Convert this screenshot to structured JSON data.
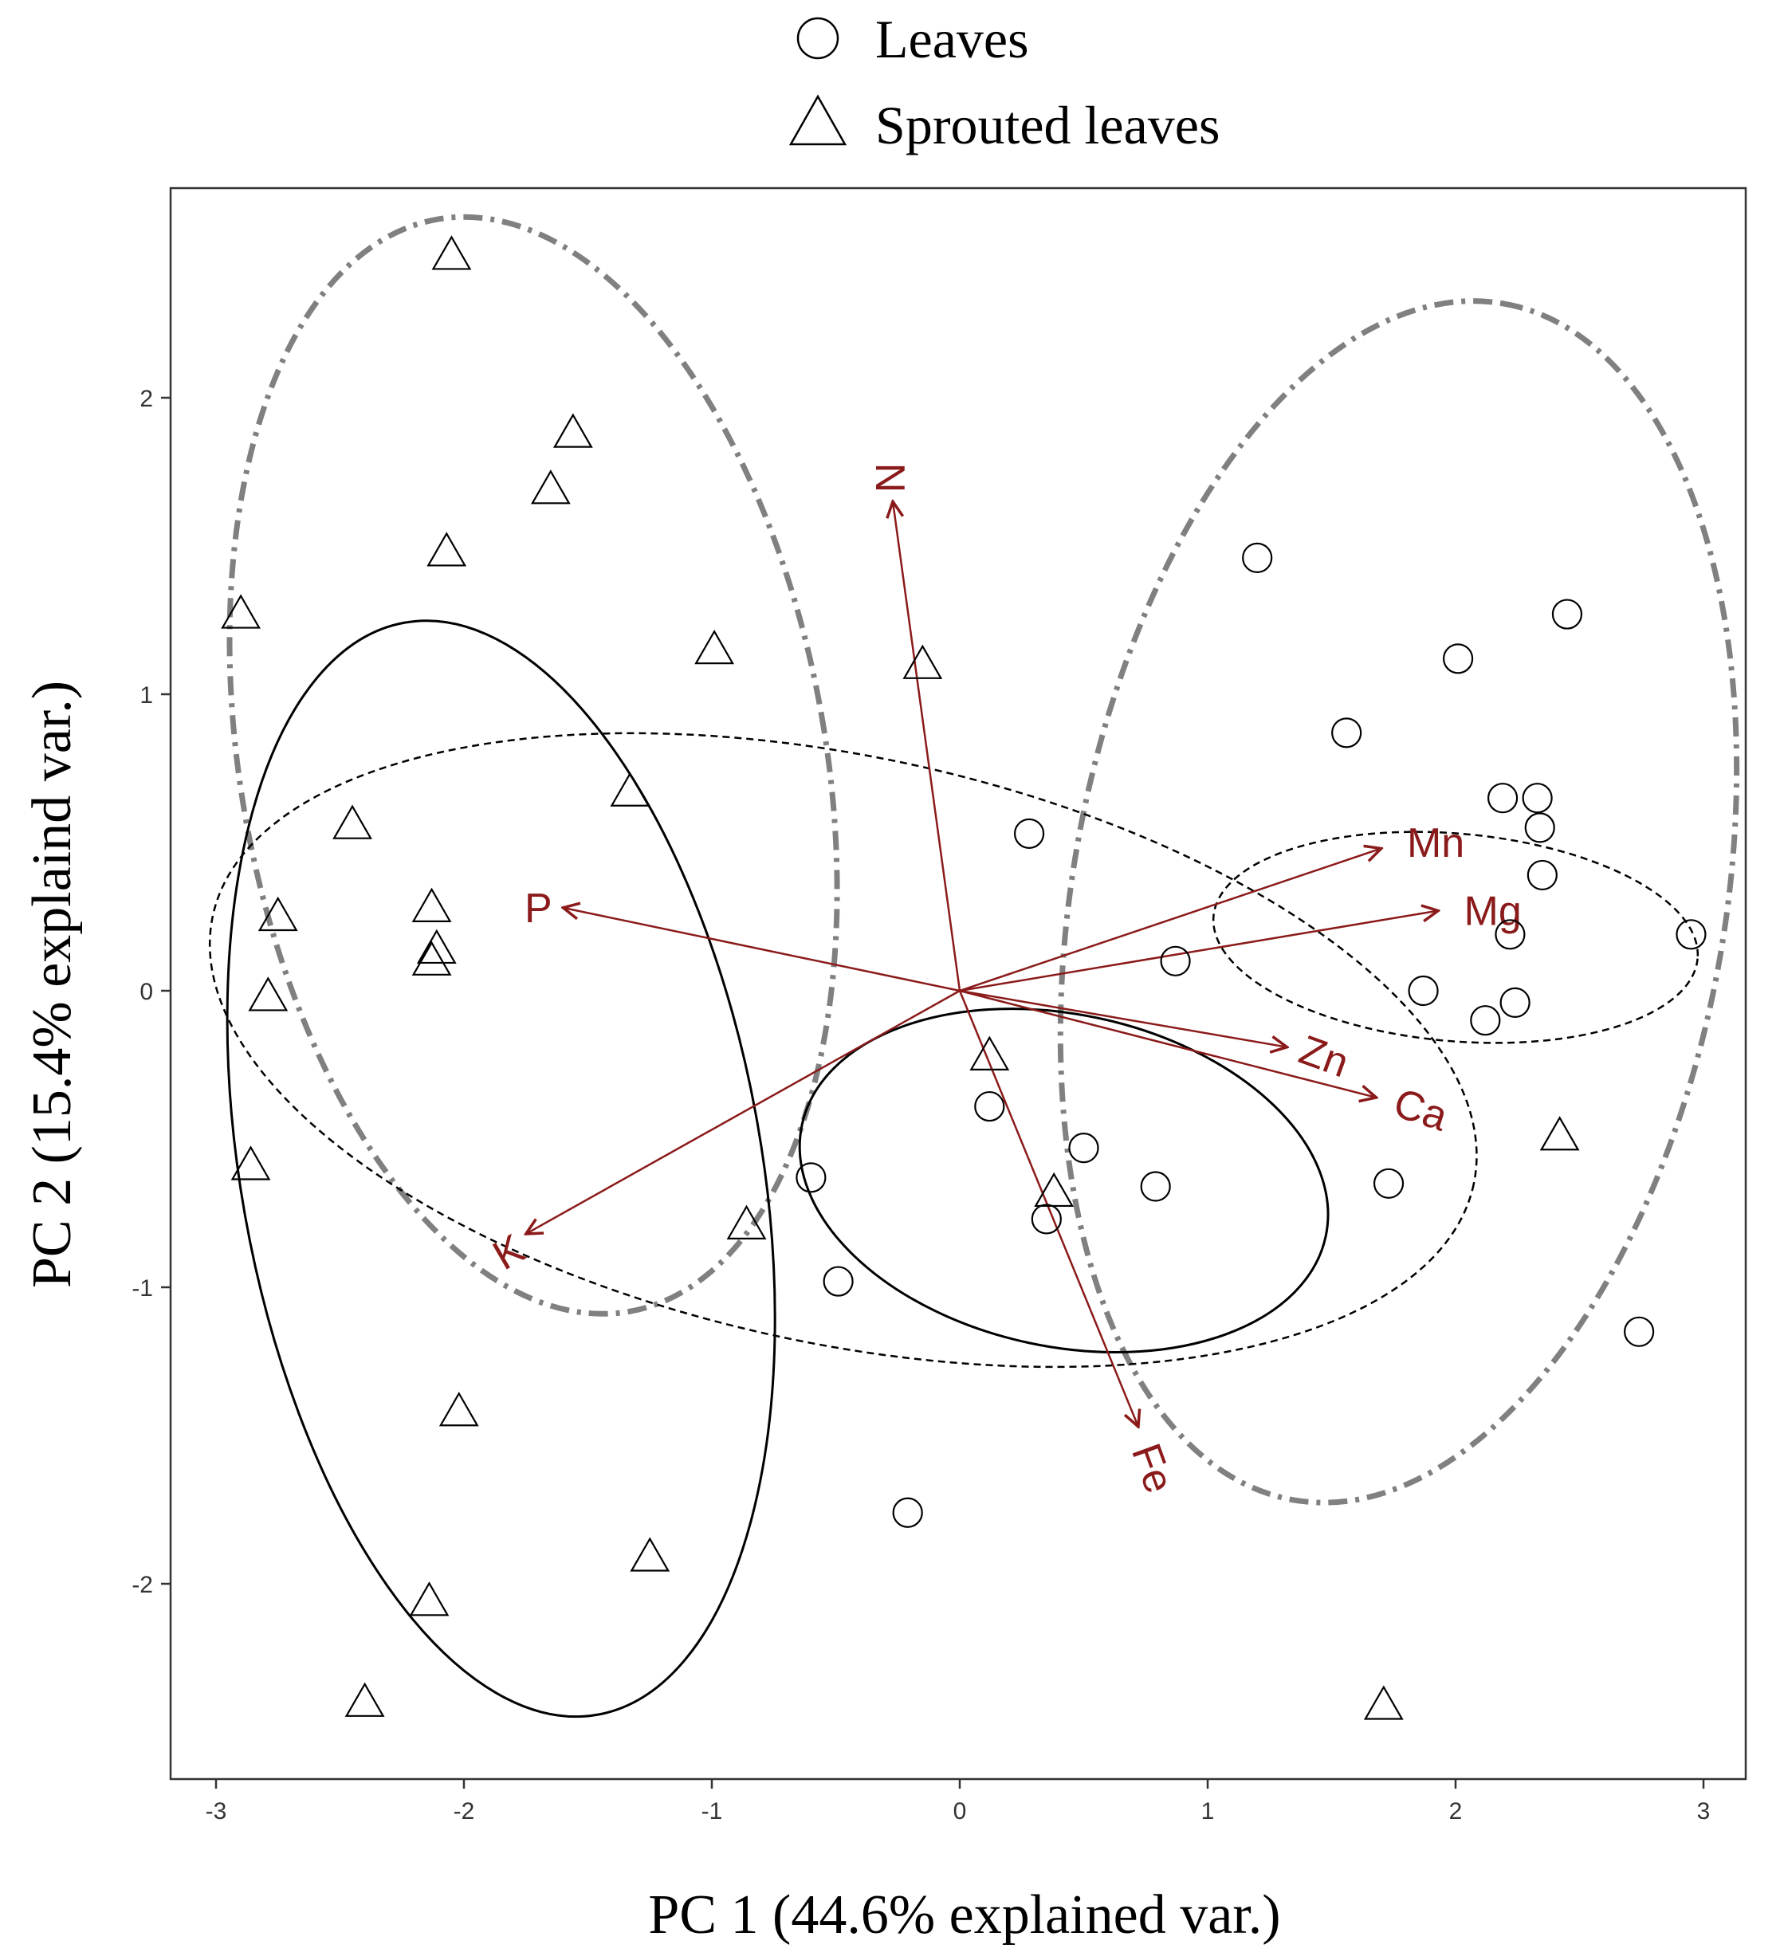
{
  "chart_data": {
    "type": "scatter",
    "title": "",
    "xlabel": "PC 1 (44.6% explained var.)",
    "ylabel": "PC 2 (15.4% explaind var.)",
    "xlim": [
      -3.2,
      3.1
    ],
    "ylim": [
      -2.7,
      2.7
    ],
    "x_ticks": [
      -3,
      -2,
      -1,
      0,
      1,
      2,
      3
    ],
    "y_ticks": [
      -2,
      -1,
      0,
      1,
      2
    ],
    "grid": false,
    "legend": {
      "position": "top",
      "entries": [
        {
          "name": "Leaves",
          "marker": "circle"
        },
        {
          "name": "Sprouted leaves",
          "marker": "triangle"
        }
      ]
    },
    "series": [
      {
        "name": "Leaves",
        "marker": "circle",
        "points": [
          {
            "x": 1.2,
            "y": 1.46
          },
          {
            "x": 2.45,
            "y": 1.27
          },
          {
            "x": 2.01,
            "y": 1.12
          },
          {
            "x": 1.56,
            "y": 0.87
          },
          {
            "x": 2.19,
            "y": 0.65
          },
          {
            "x": 2.33,
            "y": 0.65
          },
          {
            "x": 2.34,
            "y": 0.55
          },
          {
            "x": 0.28,
            "y": 0.53
          },
          {
            "x": 2.35,
            "y": 0.39
          },
          {
            "x": 2.95,
            "y": 0.19
          },
          {
            "x": 2.22,
            "y": 0.19
          },
          {
            "x": 0.87,
            "y": 0.1
          },
          {
            "x": 1.87,
            "y": 0.0
          },
          {
            "x": 2.24,
            "y": -0.04
          },
          {
            "x": 2.12,
            "y": -0.1
          },
          {
            "x": 0.12,
            "y": -0.39
          },
          {
            "x": 0.5,
            "y": -0.53
          },
          {
            "x": -0.6,
            "y": -0.63
          },
          {
            "x": 0.79,
            "y": -0.66
          },
          {
            "x": 1.73,
            "y": -0.65
          },
          {
            "x": 0.35,
            "y": -0.77
          },
          {
            "x": -0.49,
            "y": -0.98
          },
          {
            "x": 2.74,
            "y": -1.15
          },
          {
            "x": -0.21,
            "y": -1.76
          }
        ]
      },
      {
        "name": "Sprouted leaves",
        "marker": "triangle",
        "points": [
          {
            "x": -2.05,
            "y": 2.48
          },
          {
            "x": -1.56,
            "y": 1.88
          },
          {
            "x": -1.65,
            "y": 1.69
          },
          {
            "x": -2.07,
            "y": 1.48
          },
          {
            "x": -2.9,
            "y": 1.27
          },
          {
            "x": -0.99,
            "y": 1.15
          },
          {
            "x": -0.15,
            "y": 1.1
          },
          {
            "x": -1.33,
            "y": 0.67
          },
          {
            "x": -2.45,
            "y": 0.56
          },
          {
            "x": -2.13,
            "y": 0.28
          },
          {
            "x": -2.75,
            "y": 0.25
          },
          {
            "x": -2.11,
            "y": 0.14
          },
          {
            "x": -2.13,
            "y": 0.1
          },
          {
            "x": -2.79,
            "y": -0.02
          },
          {
            "x": 0.12,
            "y": -0.22
          },
          {
            "x": 2.42,
            "y": -0.49
          },
          {
            "x": -2.86,
            "y": -0.59
          },
          {
            "x": 0.38,
            "y": -0.68
          },
          {
            "x": -0.86,
            "y": -0.79
          },
          {
            "x": -2.02,
            "y": -1.42
          },
          {
            "x": -1.25,
            "y": -1.91
          },
          {
            "x": -2.14,
            "y": -2.06
          },
          {
            "x": -2.4,
            "y": -2.4
          },
          {
            "x": 1.71,
            "y": -2.41
          }
        ]
      }
    ],
    "ellipses": [
      {
        "style": "grey-dotdash",
        "cx": -1.72,
        "cy": 0.76,
        "rx": 1.18,
        "ry": 1.87,
        "angle": -10
      },
      {
        "style": "grey-dotdash",
        "cx": 1.77,
        "cy": 0.3,
        "rx": 2.45,
        "ry": 1.1,
        "angle": -80
      },
      {
        "style": "black-solid",
        "cx": -1.85,
        "cy": -0.6,
        "rx": 1.05,
        "ry": 1.87,
        "angle": -10
      },
      {
        "style": "black-solid",
        "cx": 0.42,
        "cy": -0.64,
        "rx": 1.08,
        "ry": 0.56,
        "angle": 12
      },
      {
        "style": "black-dashed",
        "cx": -0.47,
        "cy": -0.2,
        "rx": 2.6,
        "ry": 0.99,
        "angle": 12
      },
      {
        "style": "black-dashed",
        "cx": 2.0,
        "cy": 0.18,
        "rx": 0.98,
        "ry": 0.35,
        "angle": 5
      }
    ],
    "loadings": [
      {
        "label": "N",
        "x": -0.27,
        "y": 1.65,
        "label_x": -0.28,
        "label_y": 1.73,
        "rotate": 90
      },
      {
        "label": "Mn",
        "x": 1.7,
        "y": 0.48,
        "label_x": 1.92,
        "label_y": 0.5,
        "rotate": 0
      },
      {
        "label": "Mg",
        "x": 1.93,
        "y": 0.27,
        "label_x": 2.15,
        "label_y": 0.27,
        "rotate": 0
      },
      {
        "label": "P",
        "x": -1.6,
        "y": 0.28,
        "label_x": -1.7,
        "label_y": 0.28,
        "rotate": 0
      },
      {
        "label": "Zn",
        "x": 1.32,
        "y": -0.19,
        "label_x": 1.47,
        "label_y": -0.22,
        "rotate": 20
      },
      {
        "label": "Ca",
        "x": 1.68,
        "y": -0.36,
        "label_x": 1.86,
        "label_y": -0.4,
        "rotate": 18
      },
      {
        "label": "K",
        "x": -1.75,
        "y": -0.82,
        "label_x": -1.82,
        "label_y": -0.88,
        "rotate": -30
      },
      {
        "label": "Fe",
        "x": 0.72,
        "y": -1.47,
        "label_x": 0.78,
        "label_y": -1.61,
        "rotate": 70
      }
    ],
    "colors": {
      "loading": "#8b1a1a",
      "ellipse_grey": "#808080",
      "ellipse_black": "#000000",
      "marker": "#000000"
    }
  }
}
